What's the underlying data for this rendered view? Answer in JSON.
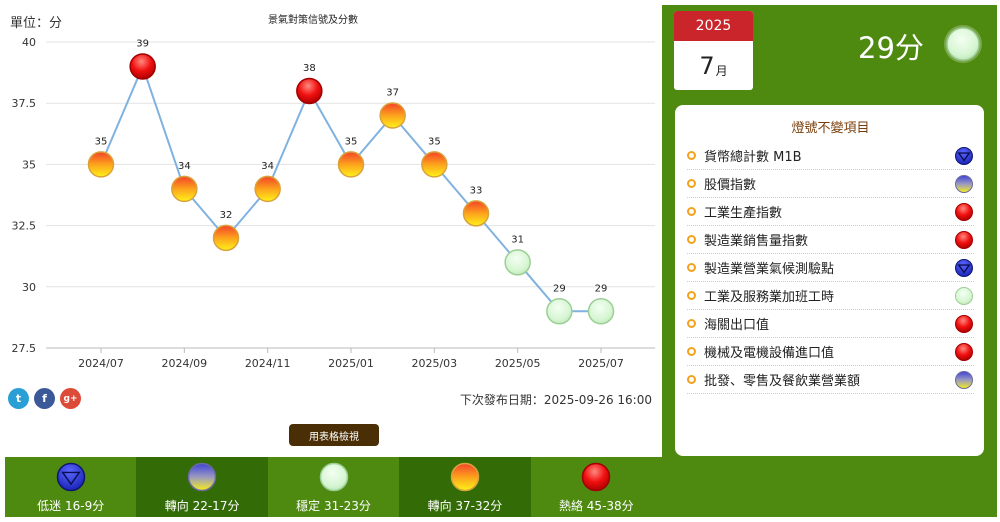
{
  "chart": {
    "unit_label": "單位：分",
    "title": "景氣對策信號及分數",
    "next_release": "下次發布日期：2025-09-26 16:00",
    "table_button": "用表格檢視",
    "social_labels": {
      "twitter": "t",
      "facebook": "f",
      "google": "g+"
    }
  },
  "chart_data": {
    "type": "line",
    "title": "景氣對策信號及分數",
    "ylabel": "單位：分",
    "xlabel": "",
    "ylim": [
      27.5,
      40
    ],
    "yticks": [
      "27.5",
      "30",
      "32.5",
      "35",
      "37.5",
      "40"
    ],
    "x": [
      "2024/07",
      "2024/08",
      "2024/09",
      "2024/10",
      "2024/11",
      "2024/12",
      "2025/01",
      "2025/02",
      "2025/03",
      "2025/04",
      "2025/05",
      "2025/06",
      "2025/07"
    ],
    "xtick_labels": [
      "2024/07",
      "2024/09",
      "2024/11",
      "2025/01",
      "2025/03",
      "2025/05",
      "2025/07"
    ],
    "values": [
      35,
      39,
      34,
      32,
      34,
      38,
      35,
      37,
      35,
      33,
      31,
      29,
      29
    ],
    "signals": [
      "yellow-red",
      "red",
      "yellow-red",
      "yellow-red",
      "yellow-red",
      "red",
      "yellow-red",
      "yellow-red",
      "yellow-red",
      "yellow-red",
      "green",
      "green",
      "green"
    ],
    "grid": true,
    "line_color": "#7fb2e0"
  },
  "legend": [
    {
      "label": "低迷 16-9分",
      "signal": "blue",
      "shade": "light"
    },
    {
      "label": "轉向 22-17分",
      "signal": "yellow-blue",
      "shade": "dark"
    },
    {
      "label": "穩定 31-23分",
      "signal": "green",
      "shade": "light"
    },
    {
      "label": "轉向 37-32分",
      "signal": "yellow-red",
      "shade": "dark"
    },
    {
      "label": "熱絡 45-38分",
      "signal": "red",
      "shade": "light"
    }
  ],
  "summary": {
    "year": "2025",
    "month": "7",
    "month_unit": "月",
    "score": "29分",
    "signal": "green"
  },
  "items": {
    "title": "燈號不變項目",
    "list": [
      {
        "label": "貨幣總計數 M1B",
        "signal": "blue"
      },
      {
        "label": "股價指數",
        "signal": "yellow-blue"
      },
      {
        "label": "工業生產指數",
        "signal": "red"
      },
      {
        "label": "製造業銷售量指數",
        "signal": "red"
      },
      {
        "label": "製造業營業氣候測驗點",
        "signal": "blue"
      },
      {
        "label": "工業及服務業加班工時",
        "signal": "green"
      },
      {
        "label": "海關出口值",
        "signal": "red"
      },
      {
        "label": "機械及電機設備進口值",
        "signal": "red"
      },
      {
        "label": "批發、零售及餐飲業營業額",
        "signal": "yellow-blue"
      }
    ]
  },
  "colors": {
    "panel_green": "#4f8a10",
    "panel_dark_green": "#336b06",
    "calendar_red": "#c9252b",
    "button_brown": "#4a2f06"
  }
}
